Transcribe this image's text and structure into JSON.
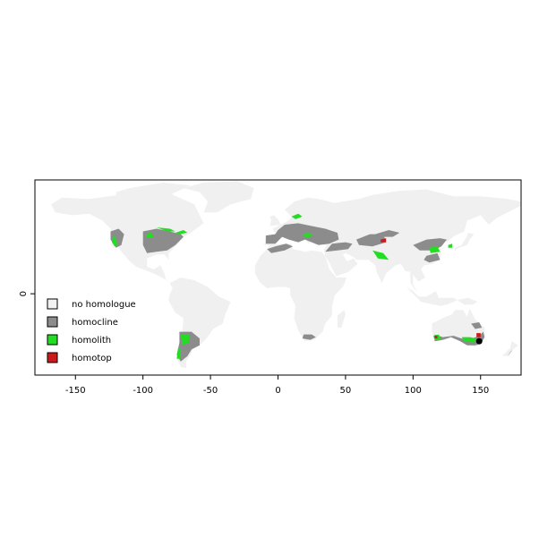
{
  "chart_data": {
    "type": "map",
    "title": "",
    "xlabel": "",
    "ylabel": "",
    "xlim": [
      -180,
      180
    ],
    "ylim": [
      -60,
      84
    ],
    "x_ticks": [
      -150,
      -100,
      -50,
      0,
      50,
      100,
      150
    ],
    "y_ticks": [
      0
    ],
    "legend": {
      "placement": "bottom-left",
      "entries": [
        {
          "label": "no homologue",
          "color": "#f2f2f2"
        },
        {
          "label": "homocline",
          "color": "#8c8c8c"
        },
        {
          "label": "homolith",
          "color": "#22dd22"
        },
        {
          "label": "homotop",
          "color": "#cc1a1a"
        }
      ]
    },
    "reference_point": {
      "lon": 149,
      "lat": -35
    }
  },
  "colors": {
    "land": "#f0f0f0",
    "homocline": "#8c8c8c",
    "homolith": "#22dd22",
    "homotop": "#cc1a1a",
    "frame": "#000000"
  }
}
